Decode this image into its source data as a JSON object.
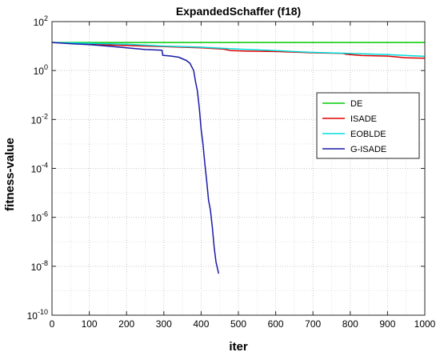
{
  "chart_data": {
    "type": "line",
    "title": "ExpandedSchaffer (f18)",
    "xlabel": "iter",
    "ylabel": "fitness-value",
    "x_scale": "linear",
    "y_scale": "log",
    "xlim": [
      0,
      1000
    ],
    "ylim": [
      1e-10,
      100
    ],
    "xticks": [
      0,
      100,
      200,
      300,
      400,
      500,
      600,
      700,
      800,
      900,
      1000
    ],
    "yticks_exp": [
      2,
      0,
      -2,
      -4,
      -6,
      -8,
      -10
    ],
    "grid": true,
    "grid_style": "dotted",
    "legend_position": "upper-right",
    "series": [
      {
        "name": "DE",
        "color": "#00cc00",
        "points": [
          [
            0,
            14
          ],
          [
            100,
            14
          ],
          [
            200,
            14
          ],
          [
            300,
            14
          ],
          [
            400,
            14
          ],
          [
            500,
            14
          ],
          [
            600,
            14
          ],
          [
            700,
            14
          ],
          [
            800,
            14
          ],
          [
            900,
            14
          ],
          [
            1000,
            14
          ]
        ]
      },
      {
        "name": "ISADE",
        "color": "#e00000",
        "points": [
          [
            0,
            14
          ],
          [
            60,
            13
          ],
          [
            120,
            11.5
          ],
          [
            200,
            10.5
          ],
          [
            300,
            9.5
          ],
          [
            400,
            8.5
          ],
          [
            460,
            7.5
          ],
          [
            480,
            6.5
          ],
          [
            520,
            6.2
          ],
          [
            600,
            6.0
          ],
          [
            700,
            5.3
          ],
          [
            780,
            5.0
          ],
          [
            790,
            4.6
          ],
          [
            830,
            4.1
          ],
          [
            900,
            3.9
          ],
          [
            950,
            3.3
          ],
          [
            1000,
            3.2
          ]
        ]
      },
      {
        "name": "EOBLDE",
        "color": "#00dddd",
        "points": [
          [
            0,
            14
          ],
          [
            100,
            13
          ],
          [
            200,
            12
          ],
          [
            300,
            10
          ],
          [
            400,
            9
          ],
          [
            500,
            7.5
          ],
          [
            600,
            6.5
          ],
          [
            700,
            5.5
          ],
          [
            800,
            5
          ],
          [
            900,
            4.5
          ],
          [
            1000,
            3.8
          ]
        ]
      },
      {
        "name": "G-ISADE",
        "color": "#1a1aa6",
        "points": [
          [
            0,
            14
          ],
          [
            50,
            12.5
          ],
          [
            100,
            11.5
          ],
          [
            150,
            10
          ],
          [
            200,
            8.5
          ],
          [
            250,
            7.2
          ],
          [
            295,
            6.8
          ],
          [
            297,
            4.2
          ],
          [
            320,
            3.9
          ],
          [
            340,
            3.5
          ],
          [
            360,
            2.6
          ],
          [
            370,
            2.0
          ],
          [
            380,
            1.0
          ],
          [
            385,
            0.35
          ],
          [
            390,
            0.15
          ],
          [
            395,
            0.03
          ],
          [
            400,
            0.004
          ],
          [
            405,
            0.001
          ],
          [
            410,
            0.00015
          ],
          [
            415,
            3e-05
          ],
          [
            420,
            5e-06
          ],
          [
            425,
            2e-06
          ],
          [
            430,
            4e-07
          ],
          [
            435,
            6e-08
          ],
          [
            440,
            1.5e-08
          ],
          [
            447,
            5e-09
          ]
        ]
      }
    ]
  }
}
